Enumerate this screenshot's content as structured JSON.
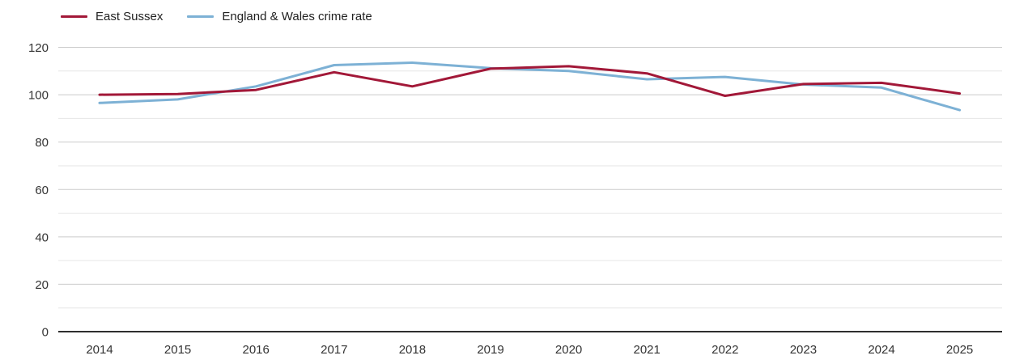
{
  "legend": {
    "items": [
      {
        "label": "East Sussex",
        "color": "#a21838"
      },
      {
        "label": "England & Wales crime rate",
        "color": "#7db1d5"
      }
    ]
  },
  "chart_data": {
    "type": "line",
    "title": "",
    "xlabel": "",
    "ylabel": "",
    "categories": [
      "2014",
      "2015",
      "2016",
      "2017",
      "2018",
      "2019",
      "2020",
      "2021",
      "2022",
      "2023",
      "2024",
      "2025"
    ],
    "series": [
      {
        "name": "East Sussex",
        "color": "#a21838",
        "values": [
          100,
          100.3,
          102,
          109.5,
          103.5,
          111,
          112,
          109,
          99.5,
          104.5,
          105,
          100.5
        ]
      },
      {
        "name": "England & Wales crime rate",
        "color": "#7db1d5",
        "values": [
          96.5,
          98,
          103.5,
          112.5,
          113.5,
          111.2,
          110,
          106.5,
          107.5,
          104.3,
          103,
          93.5
        ]
      }
    ],
    "ylim": [
      0,
      120
    ],
    "yticks": [
      0,
      20,
      40,
      60,
      80,
      100,
      120
    ],
    "minor_grid_step": 10,
    "grid": "horizontal",
    "legend_position": "top-left",
    "colors": {
      "major_grid": "#cbcbcb",
      "minor_grid": "#e6e6e6",
      "axis_line": "#2e2e2e",
      "tick_label": "#333333"
    }
  }
}
